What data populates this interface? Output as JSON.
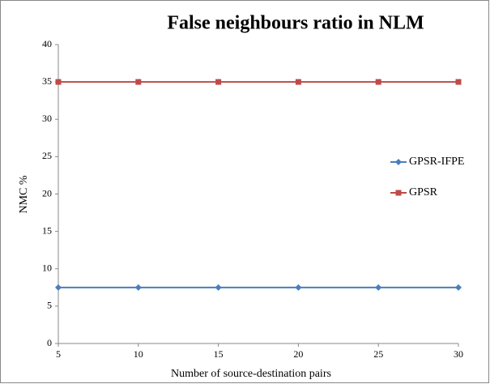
{
  "chart_data": {
    "type": "line",
    "title": "False neighbours ratio in NLM",
    "x_label": "Number of source-destination pairs",
    "y_label": "NMC %",
    "x": [
      5,
      10,
      15,
      20,
      25,
      30
    ],
    "xlim": [
      5,
      30
    ],
    "xticks": [
      5,
      10,
      15,
      20,
      25,
      30
    ],
    "ylim": [
      0,
      40
    ],
    "yticks": [
      0,
      5,
      10,
      15,
      20,
      25,
      30,
      35,
      40
    ],
    "grid": false,
    "legend": "right",
    "series": [
      {
        "name": "GPSR-IFPE",
        "color": "#4a7ebb",
        "marker": "diamond",
        "values": [
          7.5,
          7.5,
          7.5,
          7.5,
          7.5,
          7.5
        ]
      },
      {
        "name": "GPSR",
        "color": "#be4b48",
        "marker": "square",
        "values": [
          35,
          35,
          35,
          35,
          35,
          35
        ]
      }
    ]
  }
}
